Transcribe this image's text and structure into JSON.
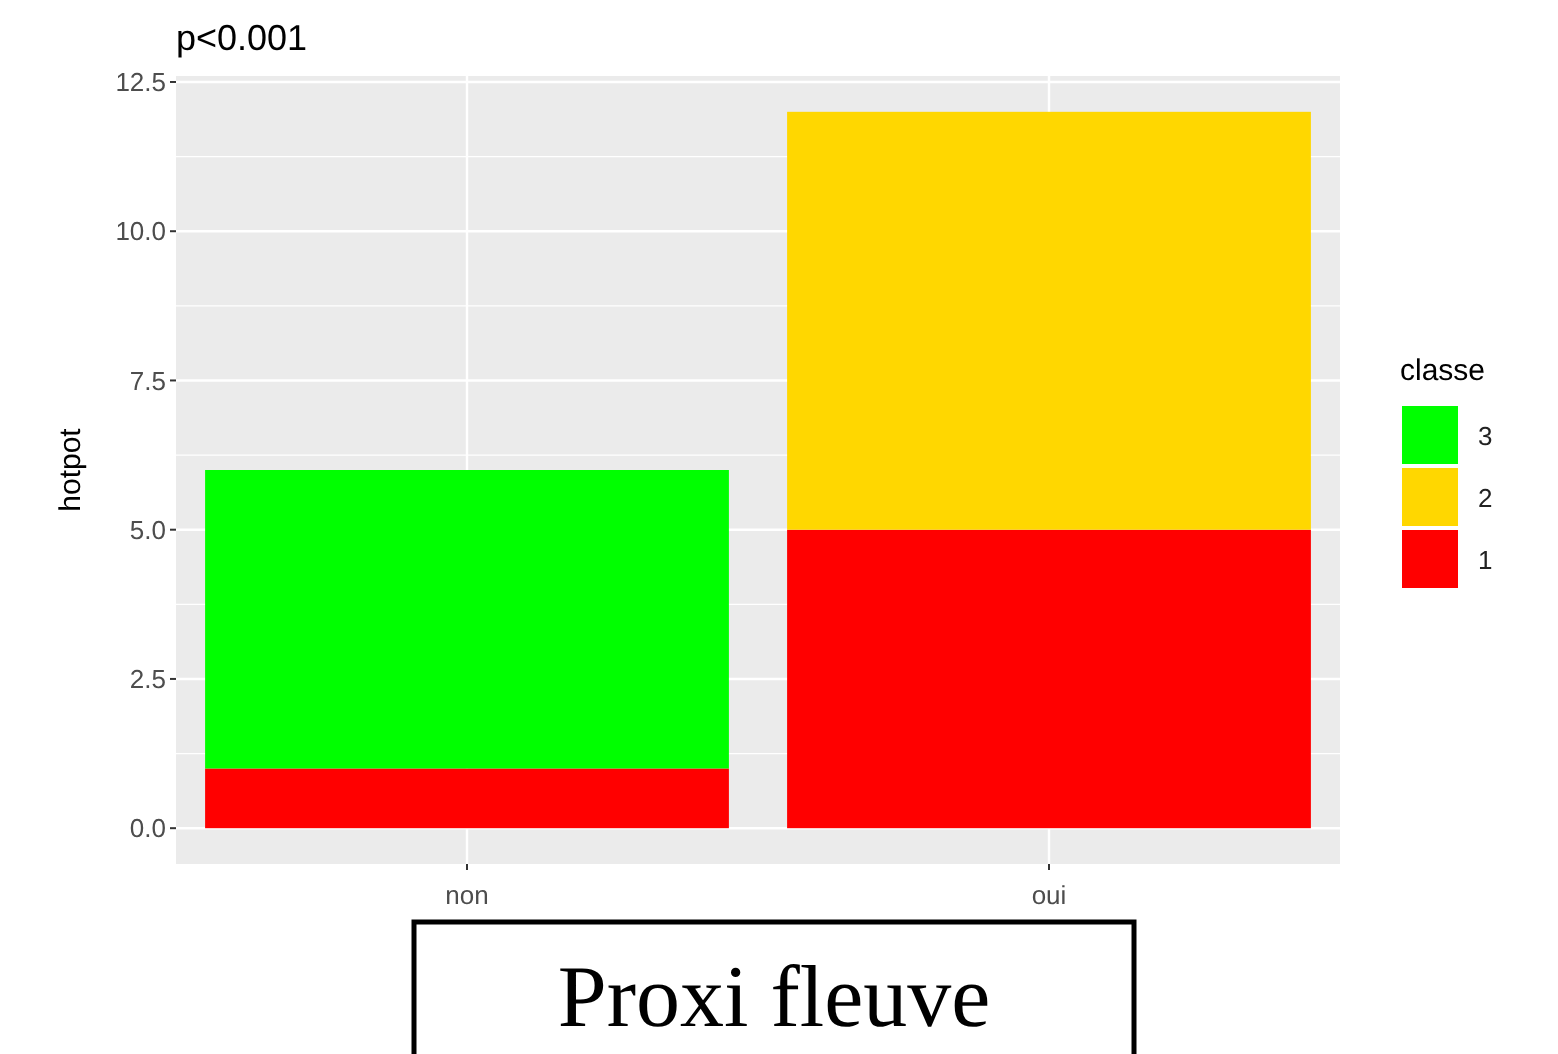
{
  "chart_data": {
    "type": "bar",
    "title": "p<0.001",
    "ylabel": "hotpot",
    "legend_title": "classe",
    "categories": [
      "non",
      "oui"
    ],
    "stacked": true,
    "series": [
      {
        "name": "1",
        "color": "#ff0000",
        "values": [
          1,
          5
        ]
      },
      {
        "name": "2",
        "color": "#ffd700",
        "values": [
          0,
          7
        ]
      },
      {
        "name": "3",
        "color": "#00ff00",
        "values": [
          5,
          0
        ]
      }
    ],
    "ylim": [
      -0.6,
      12.6
    ],
    "yticks": [
      {
        "value": 0,
        "label": "0.0"
      },
      {
        "value": 2.5,
        "label": "2.5"
      },
      {
        "value": 5,
        "label": "5.0"
      },
      {
        "value": 7.5,
        "label": "7.5"
      },
      {
        "value": 10,
        "label": "10.0"
      },
      {
        "value": 12.5,
        "label": "12.5"
      }
    ],
    "grid": true,
    "legend": "right",
    "annotations": [
      "Proxi fleuve"
    ]
  }
}
